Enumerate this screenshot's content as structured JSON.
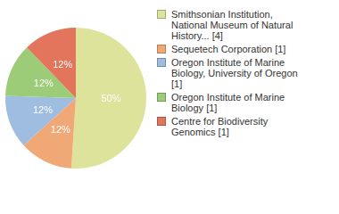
{
  "chart_data": {
    "type": "pie",
    "categories": [
      "Smithsonian Institution, National Museum of Natural History... [4]",
      "Sequetech Corporation [1]",
      "Oregon Institute of Marine Biology, University of Oregon [1]",
      "Oregon Institute of Marine Biology [1]",
      "Centre for Biodiversity Genomics [1]"
    ],
    "values": [
      50,
      12,
      12,
      12,
      12
    ],
    "value_labels": [
      "50%",
      "12%",
      "12%",
      "12%",
      "12%"
    ],
    "colors": [
      "#dde39a",
      "#f0a876",
      "#9fbde0",
      "#9ccc78",
      "#e2755c"
    ],
    "data_labels": true,
    "legend": "right"
  }
}
